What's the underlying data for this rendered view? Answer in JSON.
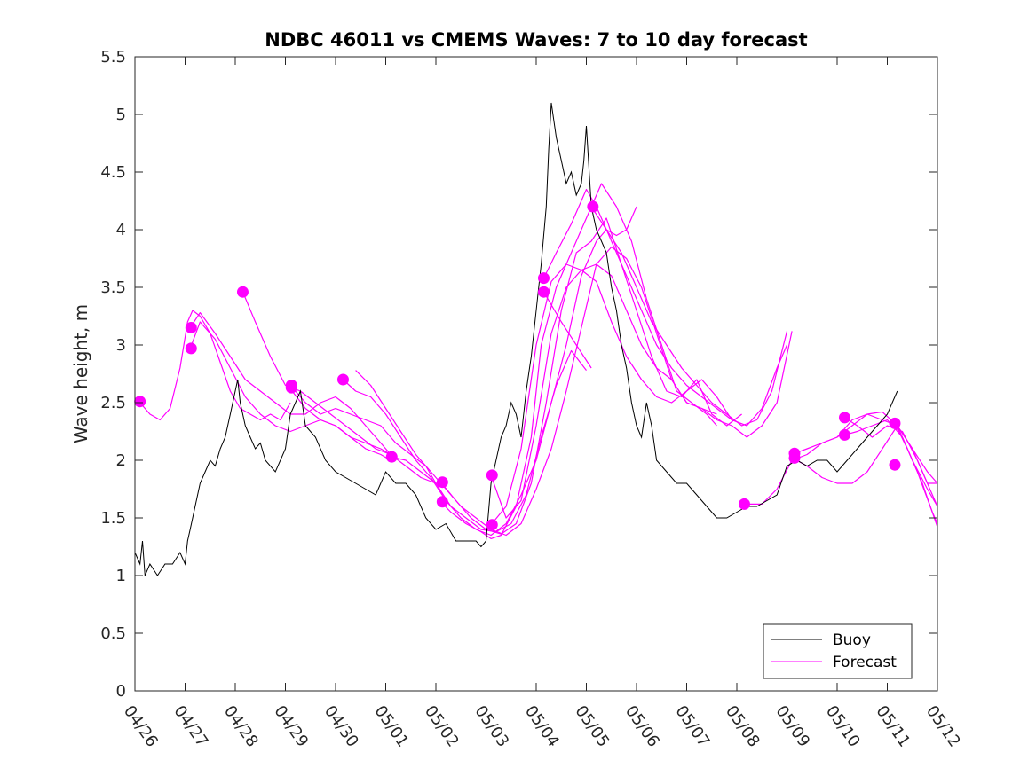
{
  "chart_data": {
    "type": "line",
    "title": "NDBC 46011 vs CMEMS Waves: 7 to 10 day forecast",
    "xlabel": "",
    "ylabel": "Wave height, m",
    "xlim": [
      0,
      16
    ],
    "ylim": [
      0,
      5.5
    ],
    "grid": false,
    "legend_position": "bottom-right",
    "x_tick_labels": [
      "04/26",
      "04/27",
      "04/28",
      "04/29",
      "04/30",
      "05/01",
      "05/02",
      "05/03",
      "05/04",
      "05/05",
      "05/06",
      "05/07",
      "05/08",
      "05/09",
      "05/10",
      "05/11",
      "05/12"
    ],
    "y_tick_labels": [
      "0",
      "0.5",
      "1",
      "1.5",
      "2",
      "2.5",
      "3",
      "3.5",
      "4",
      "4.5",
      "5",
      "5.5"
    ],
    "legend": [
      "Buoy",
      "Forecast"
    ],
    "colors": {
      "buoy": "#000000",
      "forecast": "#ff00ff",
      "axes": "#262626"
    },
    "buoy": {
      "x": [
        0,
        0.1,
        0.15,
        0.2,
        0.3,
        0.45,
        0.6,
        0.75,
        0.9,
        1.0,
        1.05,
        1.1,
        1.2,
        1.3,
        1.4,
        1.5,
        1.6,
        1.7,
        1.8,
        1.9,
        2.0,
        2.05,
        2.1,
        2.2,
        2.3,
        2.4,
        2.5,
        2.6,
        2.8,
        3.0,
        3.1,
        3.2,
        3.3,
        3.4,
        3.6,
        3.8,
        4.0,
        4.2,
        4.4,
        4.6,
        4.8,
        5.0,
        5.2,
        5.4,
        5.6,
        5.8,
        6.0,
        6.2,
        6.4,
        6.6,
        6.8,
        6.9,
        7.0,
        7.1,
        7.2,
        7.3,
        7.4,
        7.5,
        7.6,
        7.7,
        7.8,
        7.9,
        8.0,
        8.1,
        8.2,
        8.25,
        8.3,
        8.4,
        8.5,
        8.6,
        8.7,
        8.8,
        8.9,
        8.95,
        9.0,
        9.1,
        9.2,
        9.3,
        9.4,
        9.5,
        9.6,
        9.7,
        9.8,
        9.9,
        10.0,
        10.1,
        10.2,
        10.3,
        10.4,
        10.6,
        10.8,
        11.0,
        11.2,
        11.4,
        11.6,
        11.8,
        12.0,
        12.2,
        12.4,
        12.6,
        12.8,
        13.0,
        13.2,
        13.4,
        13.6,
        13.8,
        14.0,
        14.2,
        14.4,
        14.6,
        14.8,
        15.0,
        15.1,
        15.2
      ],
      "y": [
        1.2,
        1.1,
        1.3,
        1.0,
        1.1,
        1.0,
        1.1,
        1.1,
        1.2,
        1.1,
        1.3,
        1.4,
        1.6,
        1.8,
        1.9,
        2.0,
        1.95,
        2.1,
        2.2,
        2.4,
        2.6,
        2.7,
        2.5,
        2.3,
        2.2,
        2.1,
        2.15,
        2.0,
        1.9,
        2.1,
        2.4,
        2.5,
        2.6,
        2.3,
        2.2,
        2.0,
        1.9,
        1.85,
        1.8,
        1.75,
        1.7,
        1.9,
        1.8,
        1.8,
        1.7,
        1.5,
        1.4,
        1.45,
        1.3,
        1.3,
        1.3,
        1.25,
        1.3,
        1.8,
        2.0,
        2.2,
        2.3,
        2.5,
        2.4,
        2.2,
        2.6,
        2.9,
        3.3,
        3.7,
        4.2,
        4.7,
        5.1,
        4.8,
        4.6,
        4.4,
        4.5,
        4.3,
        4.4,
        4.6,
        4.9,
        4.2,
        4.0,
        3.9,
        3.8,
        3.5,
        3.3,
        3.0,
        2.8,
        2.5,
        2.3,
        2.2,
        2.5,
        2.3,
        2.0,
        1.9,
        1.8,
        1.8,
        1.7,
        1.6,
        1.5,
        1.5,
        1.55,
        1.6,
        1.6,
        1.65,
        1.7,
        1.95,
        2.0,
        1.95,
        2.0,
        2.0,
        1.9,
        2.0,
        2.1,
        2.2,
        2.3,
        2.4,
        2.5,
        2.6
      ]
    },
    "forecast_series": [
      {
        "x": [
          0.1,
          0.3,
          0.5,
          0.7,
          0.9,
          1.05,
          1.15,
          1.3,
          1.5,
          1.7,
          1.9,
          2.1,
          2.3,
          2.5,
          2.7,
          2.9,
          3.1
        ],
        "y": [
          2.5,
          2.4,
          2.35,
          2.45,
          2.8,
          3.2,
          3.3,
          3.25,
          3.1,
          2.85,
          2.6,
          2.45,
          2.4,
          2.35,
          2.4,
          2.35,
          2.5
        ]
      },
      {
        "x": [
          1.1,
          1.3,
          1.6,
          1.9,
          2.2,
          2.5,
          2.8,
          3.1,
          3.4,
          3.7,
          4.0,
          4.3,
          4.6,
          4.9,
          5.1
        ],
        "y": [
          3.15,
          3.28,
          3.1,
          2.9,
          2.7,
          2.6,
          2.5,
          2.4,
          2.4,
          2.5,
          2.55,
          2.45,
          2.3,
          2.15,
          2.05
        ]
      },
      {
        "x": [
          1.1,
          1.3,
          1.6,
          1.9,
          2.2,
          2.5,
          2.8,
          3.1,
          3.4,
          3.7,
          4.0,
          4.3,
          4.6,
          4.9,
          5.1
        ],
        "y": [
          2.97,
          3.2,
          3.05,
          2.8,
          2.55,
          2.4,
          2.3,
          2.25,
          2.3,
          2.35,
          2.3,
          2.2,
          2.1,
          2.05,
          2.0
        ]
      },
      {
        "x": [
          2.15,
          2.4,
          2.7,
          3.0,
          3.3,
          3.6,
          3.9,
          4.2,
          4.5,
          4.8,
          5.1,
          5.4,
          5.7,
          6.0
        ],
        "y": [
          3.46,
          3.2,
          2.9,
          2.65,
          2.6,
          2.5,
          2.4,
          2.3,
          2.2,
          2.1,
          2.05,
          1.95,
          1.85,
          1.8
        ]
      },
      {
        "x": [
          3.1,
          3.4,
          3.7,
          4.0,
          4.3,
          4.6,
          4.9,
          5.2,
          5.5,
          5.8,
          6.0,
          6.2
        ],
        "y": [
          2.65,
          2.5,
          2.4,
          2.45,
          2.4,
          2.35,
          2.3,
          2.15,
          2.05,
          1.95,
          1.8,
          1.8
        ]
      },
      {
        "x": [
          3.1,
          3.4,
          3.7,
          4.0,
          4.3,
          4.6,
          4.9,
          5.1
        ],
        "y": [
          2.62,
          2.45,
          2.35,
          2.3,
          2.2,
          2.15,
          2.1,
          2.05
        ]
      },
      {
        "x": [
          4.15,
          4.4,
          4.7,
          5.0,
          5.3,
          5.6,
          5.9,
          6.2,
          6.5,
          6.8,
          7.1,
          7.4,
          7.7,
          8.0,
          8.3,
          8.6,
          8.9,
          9.2,
          9.4,
          9.6,
          9.8,
          10.0
        ],
        "y": [
          2.7,
          2.6,
          2.55,
          2.4,
          2.2,
          2.0,
          1.85,
          1.65,
          1.5,
          1.4,
          1.35,
          1.45,
          1.7,
          2.0,
          2.5,
          3.0,
          3.6,
          3.9,
          4.0,
          3.95,
          4.0,
          4.2
        ]
      },
      {
        "x": [
          4.4,
          4.7,
          5.0,
          5.3,
          5.6,
          5.9,
          6.2,
          6.5,
          6.8,
          7.1,
          7.4,
          7.7,
          8.0,
          8.3,
          8.6,
          8.9,
          9.2,
          9.5,
          9.8,
          10.1,
          10.4,
          10.7,
          11.0,
          11.3,
          11.6
        ],
        "y": [
          2.78,
          2.65,
          2.45,
          2.25,
          2.05,
          1.9,
          1.75,
          1.6,
          1.5,
          1.4,
          1.35,
          1.45,
          1.75,
          2.1,
          2.6,
          3.15,
          3.7,
          3.85,
          3.75,
          3.5,
          3.1,
          2.7,
          2.5,
          2.45,
          2.4
        ]
      },
      {
        "x": [
          5.1,
          5.4,
          5.7,
          6.0,
          6.3,
          6.6,
          6.9,
          7.2,
          7.5,
          7.8,
          8.1,
          8.4,
          8.7,
          9.0
        ],
        "y": [
          2.03,
          2.0,
          1.9,
          1.8,
          1.6,
          1.5,
          1.4,
          1.38,
          1.45,
          1.7,
          2.2,
          2.65,
          2.95,
          2.78
        ]
      },
      {
        "x": [
          6.1,
          6.3,
          6.6,
          6.9,
          7.1,
          7.3,
          7.6,
          7.9,
          8.1,
          8.4,
          8.7,
          9.0,
          9.3,
          9.6,
          9.9,
          10.2,
          10.5,
          10.8,
          11.1,
          11.4,
          11.6
        ],
        "y": [
          1.64,
          1.55,
          1.45,
          1.38,
          1.32,
          1.35,
          1.6,
          2.2,
          3.0,
          3.5,
          3.8,
          4.1,
          4.4,
          4.2,
          3.9,
          3.4,
          3.0,
          2.6,
          2.5,
          2.4,
          2.3
        ]
      },
      {
        "x": [
          6.1,
          6.4,
          6.7,
          7.0,
          7.3,
          7.6,
          7.9,
          8.2,
          8.5,
          8.8,
          9.1,
          9.4,
          9.7,
          10.0,
          10.3,
          10.6,
          10.9,
          11.2,
          11.5,
          11.8,
          12.1
        ],
        "y": [
          1.81,
          1.65,
          1.5,
          1.4,
          1.36,
          1.45,
          1.8,
          2.5,
          3.3,
          3.8,
          3.9,
          4.1,
          3.7,
          3.3,
          2.9,
          2.6,
          2.55,
          2.7,
          2.4,
          2.3,
          2.4
        ]
      },
      {
        "x": [
          7.1,
          7.4,
          7.7,
          8.0,
          8.3,
          8.6,
          8.9,
          9.2,
          9.5,
          9.8,
          10.1,
          10.4,
          10.7,
          11.0,
          11.3,
          11.6,
          11.9,
          12.2,
          12.5,
          12.8,
          13.1
        ],
        "y": [
          1.87,
          1.5,
          1.65,
          2.3,
          3.1,
          3.5,
          3.65,
          3.7,
          3.6,
          3.3,
          3.0,
          2.8,
          2.7,
          2.5,
          2.45,
          2.35,
          2.3,
          2.2,
          2.3,
          2.5,
          3.12
        ]
      },
      {
        "x": [
          7.1,
          7.4,
          7.7,
          8.0,
          8.3,
          8.6,
          8.9,
          9.2,
          9.5,
          9.8,
          10.1,
          10.4,
          10.7,
          11.0,
          11.3,
          11.6,
          11.9,
          12.2
        ],
        "y": [
          1.44,
          1.6,
          2.1,
          3.0,
          3.55,
          3.7,
          3.65,
          3.55,
          3.2,
          2.9,
          2.7,
          2.55,
          2.5,
          2.6,
          2.7,
          2.55,
          2.35,
          2.3
        ]
      },
      {
        "x": [
          8.15,
          8.4,
          8.7,
          9.0,
          9.2,
          9.5,
          9.8,
          10.1,
          10.4,
          10.7,
          11.0,
          11.3,
          11.6,
          11.9,
          12.2,
          12.5,
          12.8,
          13.0
        ],
        "y": [
          3.58,
          3.8,
          4.05,
          4.35,
          4.2,
          3.9,
          3.6,
          3.3,
          3.0,
          2.8,
          2.65,
          2.55,
          2.45,
          2.35,
          2.3,
          2.45,
          2.8,
          3.0
        ]
      },
      {
        "x": [
          8.15,
          8.5,
          8.8,
          9.1
        ],
        "y": [
          3.46,
          3.2,
          3.0,
          2.8
        ]
      },
      {
        "x": [
          9.1,
          9.4,
          9.7,
          10.0,
          10.3,
          10.6,
          10.9,
          11.2,
          11.5,
          11.8,
          12.1,
          12.4,
          12.7,
          13.0
        ],
        "y": [
          4.2,
          4.0,
          3.8,
          3.5,
          3.2,
          3.0,
          2.8,
          2.65,
          2.5,
          2.4,
          2.3,
          2.35,
          2.6,
          3.12
        ]
      },
      {
        "x": [
          12.15,
          12.5,
          12.8,
          13.1,
          13.4,
          13.7,
          14.0,
          14.3,
          14.6,
          14.9,
          15.2,
          15.5,
          15.8,
          16.0
        ],
        "y": [
          1.62,
          1.62,
          1.75,
          2.0,
          2.05,
          2.15,
          2.2,
          2.35,
          2.4,
          2.35,
          2.3,
          2.1,
          1.8,
          1.8
        ]
      },
      {
        "x": [
          13.15,
          13.4,
          13.7,
          14.0,
          14.3,
          14.6,
          14.9,
          15.2,
          15.5,
          15.8,
          16.0
        ],
        "y": [
          2.06,
          2.1,
          2.15,
          2.2,
          2.3,
          2.4,
          2.42,
          2.3,
          2.1,
          1.9,
          1.8
        ]
      },
      {
        "x": [
          13.15,
          13.4,
          13.7,
          14.0,
          14.3,
          14.6,
          14.9,
          15.2,
          15.5,
          15.8,
          16.0
        ],
        "y": [
          2.01,
          1.95,
          1.85,
          1.8,
          1.8,
          1.9,
          2.1,
          2.3,
          2.0,
          1.75,
          1.6
        ]
      },
      {
        "x": [
          14.15,
          14.4,
          14.7,
          15.0,
          15.3,
          15.6,
          15.9,
          16.0
        ],
        "y": [
          2.37,
          2.3,
          2.2,
          2.3,
          2.25,
          2.0,
          1.7,
          1.6
        ]
      },
      {
        "x": [
          14.15,
          14.4,
          14.7,
          15.0,
          15.3,
          15.6,
          15.9,
          16.0
        ],
        "y": [
          2.22,
          2.25,
          2.3,
          2.35,
          2.2,
          1.9,
          1.55,
          1.45
        ]
      },
      {
        "x": [
          15.15,
          15.4,
          15.7,
          16.0
        ],
        "y": [
          2.32,
          2.1,
          1.8,
          1.42
        ]
      }
    ],
    "forecast_start_points": {
      "x": [
        0.1,
        1.12,
        1.12,
        2.15,
        3.12,
        3.12,
        4.15,
        5.12,
        6.13,
        6.13,
        7.12,
        7.12,
        8.15,
        8.15,
        9.13,
        12.15,
        13.15,
        13.15,
        14.15,
        14.15,
        15.15,
        15.15
      ],
      "y": [
        2.51,
        3.15,
        2.97,
        3.46,
        2.65,
        2.63,
        2.7,
        2.03,
        1.81,
        1.64,
        1.87,
        1.44,
        3.58,
        3.46,
        4.2,
        1.62,
        2.06,
        2.02,
        2.37,
        2.22,
        2.32,
        1.96
      ]
    }
  }
}
